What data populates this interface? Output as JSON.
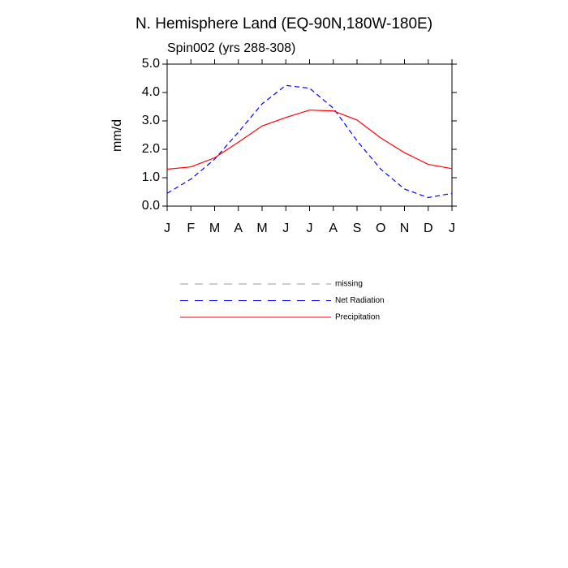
{
  "chart_data": {
    "type": "line",
    "title": "N. Hemisphere Land (EQ-90N,180W-180E)",
    "subtitle": "Spin002 (yrs 288-308)",
    "y_label": "mm/d",
    "categories": [
      "J",
      "F",
      "M",
      "A",
      "M",
      "J",
      "J",
      "A",
      "S",
      "O",
      "N",
      "D",
      "J"
    ],
    "series": [
      {
        "name": "missing",
        "color": "#999999",
        "dashed": true,
        "values": [
          null,
          null,
          null,
          null,
          null,
          null,
          null,
          null,
          null,
          null,
          null,
          null,
          null
        ]
      },
      {
        "name": "Net Radiation",
        "color": "#0000ff",
        "dashed": true,
        "values": [
          0.45,
          0.95,
          1.65,
          2.6,
          3.6,
          4.25,
          4.15,
          3.45,
          2.3,
          1.3,
          0.6,
          0.3,
          0.45
        ]
      },
      {
        "name": "Precipitation",
        "color": "#ff0000",
        "dashed": false,
        "values": [
          1.3,
          1.38,
          1.7,
          2.25,
          2.82,
          3.12,
          3.38,
          3.35,
          3.03,
          2.4,
          1.88,
          1.47,
          1.32
        ]
      }
    ],
    "ylim": [
      0,
      5
    ],
    "yticks": [
      {
        "value": 0,
        "label": "0.0"
      },
      {
        "value": 1,
        "label": "1.0"
      },
      {
        "value": 2,
        "label": "2.0"
      },
      {
        "value": 3,
        "label": "3.0"
      },
      {
        "value": 4,
        "label": "4.0"
      },
      {
        "value": 5,
        "label": "5.0"
      }
    ]
  }
}
